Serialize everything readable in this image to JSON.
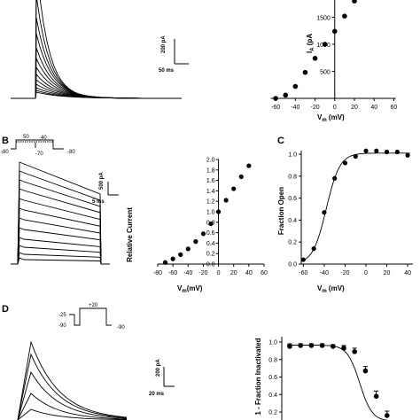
{
  "panels": {
    "B_label": "B",
    "C_label": "C",
    "D_label": "D"
  },
  "scale_bars": {
    "A_current": "200 pA",
    "A_time": "50 ms",
    "B_current": "500 pA",
    "B_time": "5 ms",
    "D_current": "200 pA",
    "D_time": "20 ms"
  },
  "protocols": {
    "B": {
      "v1": "50",
      "v2": "40",
      "v3": "-70",
      "hold_left": "-80",
      "hold_right": "-80"
    },
    "D": {
      "v1": "-25",
      "v2": "-90",
      "test": "+20",
      "hold_right": "-90"
    }
  },
  "chart_data": [
    {
      "panel": "A",
      "type": "scatter",
      "xlabel": "V",
      "xlabel_sub": "m",
      "xlabel_unit": " (mV)",
      "ylabel": "I",
      "ylabel_sub": "A",
      "ylabel_unit": " (pA)",
      "ylabel_visible": "I_A (p",
      "xticks": [
        "-60",
        "-40",
        "-20",
        "0",
        "20",
        "40",
        "60"
      ],
      "yticks": [
        "500",
        "1000",
        "1500"
      ],
      "xlim": [
        -70,
        65
      ],
      "ylim": [
        0,
        1900
      ],
      "x": [
        -60,
        -50,
        -40,
        -30,
        -20,
        -10,
        0,
        10,
        20
      ],
      "y": [
        0,
        60,
        220,
        480,
        740,
        1000,
        1240,
        1520,
        1800
      ]
    },
    {
      "panel": "B",
      "type": "scatter",
      "xlabel": "V",
      "xlabel_sub": "m",
      "xlabel_unit": "(mV)",
      "ylabel": "Relative Current",
      "xticks": [
        "-80",
        "-60",
        "-40",
        "-20",
        "0",
        "20",
        "40",
        "60"
      ],
      "yticks": [
        "0.0",
        "0.2",
        "0.4",
        "0.6",
        "0.8",
        "1.0",
        "1.2",
        "1.4",
        "1.6",
        "1.8",
        "2.0"
      ],
      "xlim": [
        -80,
        60
      ],
      "ylim": [
        -0.05,
        2.1
      ],
      "x": [
        -70,
        -60,
        -50,
        -40,
        -30,
        -20,
        -10,
        0,
        10,
        20,
        30,
        40
      ],
      "y": [
        0.03,
        0.1,
        0.18,
        0.29,
        0.43,
        0.58,
        0.77,
        1.0,
        1.22,
        1.44,
        1.67,
        1.88
      ]
    },
    {
      "panel": "C",
      "type": "scatter",
      "xlabel": "V",
      "xlabel_sub": "m",
      "xlabel_unit": " (mV)",
      "ylabel": "Fraction Open",
      "xticks": [
        "-60",
        "-40",
        "-20",
        "0",
        "20",
        "40"
      ],
      "yticks": [
        "0.0",
        "0.2",
        "0.4",
        "0.6",
        "0.8",
        "1.0"
      ],
      "xlim": [
        -62,
        45
      ],
      "ylim": [
        0,
        1.1
      ],
      "x": [
        -60,
        -50,
        -40,
        -30,
        -20,
        -10,
        0,
        10,
        20,
        30,
        40
      ],
      "y": [
        0.04,
        0.14,
        0.47,
        0.78,
        0.92,
        0.98,
        1.03,
        1.03,
        1.02,
        1.02,
        0.99
      ],
      "fit": {
        "v_half": -38,
        "k": 6.5
      }
    },
    {
      "panel": "D",
      "type": "scatter",
      "ylabel": "1 - Fraction Inactivated",
      "yticks": [
        "0.2",
        "0.4",
        "0.6",
        "0.8",
        "1.0"
      ],
      "ylim": [
        0.1,
        1.02
      ],
      "points": [
        {
          "y": 0.95,
          "err": 0.03
        },
        {
          "y": 0.96,
          "err": 0.02
        },
        {
          "y": 0.96,
          "err": 0.02
        },
        {
          "y": 0.96,
          "err": 0.02
        },
        {
          "y": 0.95,
          "err": 0.02
        },
        {
          "y": 0.93,
          "err": 0.03
        },
        {
          "y": 0.89,
          "err": 0.04
        },
        {
          "y": 0.67,
          "err": 0.05
        },
        {
          "y": 0.38,
          "err": 0.06
        },
        {
          "y": 0.16,
          "err": 0.05
        }
      ]
    }
  ]
}
